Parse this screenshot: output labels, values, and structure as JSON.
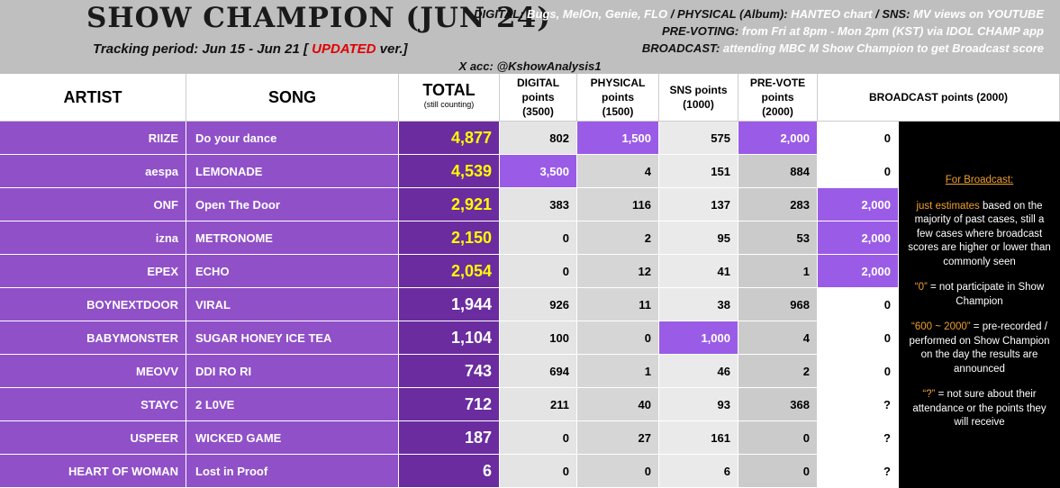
{
  "header": {
    "title": "SHOW CHAMPION (JUN 24)",
    "tracking": [
      "Tracking period: Jun 15 - Jun 21 [ ",
      "UPDATED",
      " ver.]"
    ],
    "info": [
      [
        "DIGITAL:",
        "Bugs, MelOn, Genie, FLO",
        "/ PHYSICAL (Album):",
        "HANTEO chart",
        "/ SNS:",
        "MV views on YOUTUBE"
      ],
      [
        "PRE-VOTING:",
        "from Fri at 8pm - Mon 2pm (KST) via IDOL CHAMP app"
      ],
      [
        "BROADCAST:",
        "attending MBC M Show Champion to get Broadcast score"
      ]
    ],
    "account": "X acc: @KshowAnalysis1"
  },
  "table": {
    "columns": [
      {
        "lines": [
          "ARTIST"
        ]
      },
      {
        "lines": [
          "SONG"
        ]
      },
      {
        "lines": [
          "TOTAL",
          "(still counting)"
        ]
      },
      {
        "lines": [
          "DIGITAL",
          "points",
          "(3500)"
        ]
      },
      {
        "lines": [
          "PHYSICAL",
          "points",
          "(1500)"
        ]
      },
      {
        "lines": [
          "SNS points",
          "(1000)"
        ]
      },
      {
        "lines": [
          "PRE-VOTE",
          "points",
          "(2000)"
        ]
      },
      {
        "lines": [
          "BROADCAST points (2000)"
        ]
      }
    ],
    "rows": [
      {
        "artist": "RIIZE",
        "song": "Do your dance",
        "total": "4,877",
        "digital": "802",
        "physical": "1,500",
        "sns": "575",
        "prevote": "2,000",
        "broadcast": "0",
        "total_color": "#ffff00"
      },
      {
        "artist": "aespa",
        "song": "LEMONADE",
        "total": "4,539",
        "digital": "3,500",
        "physical": "4",
        "sns": "151",
        "prevote": "884",
        "broadcast": "0",
        "total_color": "#ffff00"
      },
      {
        "artist": "ONF",
        "song": "Open The Door",
        "total": "2,921",
        "digital": "383",
        "physical": "116",
        "sns": "137",
        "prevote": "283",
        "broadcast": "2,000",
        "total_color": "#ffff00"
      },
      {
        "artist": "izna",
        "song": "METRONOME",
        "total": "2,150",
        "digital": "0",
        "physical": "2",
        "sns": "95",
        "prevote": "53",
        "broadcast": "2,000",
        "total_color": "#ffff00"
      },
      {
        "artist": "EPEX",
        "song": "ECHO",
        "total": "2,054",
        "digital": "0",
        "physical": "12",
        "sns": "41",
        "prevote": "1",
        "broadcast": "2,000",
        "total_color": "#ffff00"
      },
      {
        "artist": "BOYNEXTDOOR",
        "song": "VIRAL",
        "total": "1,944",
        "digital": "926",
        "physical": "11",
        "sns": "38",
        "prevote": "968",
        "broadcast": "0",
        "total_color": "#ffffff"
      },
      {
        "artist": "BABYMONSTER",
        "song": "SUGAR HONEY ICE TEA",
        "total": "1,104",
        "digital": "100",
        "physical": "0",
        "sns": "1,000",
        "prevote": "4",
        "broadcast": "0",
        "total_color": "#ffffff"
      },
      {
        "artist": "MEOVV",
        "song": "DDI RO RI",
        "total": "743",
        "digital": "694",
        "physical": "1",
        "sns": "46",
        "prevote": "2",
        "broadcast": "0",
        "total_color": "#ffffff"
      },
      {
        "artist": "STAYC",
        "song": "2 L0VE",
        "total": "712",
        "digital": "211",
        "physical": "40",
        "sns": "93",
        "prevote": "368",
        "broadcast": "?",
        "total_color": "#ffffff"
      },
      {
        "artist": "USPEER",
        "song": "WICKED GAME",
        "total": "187",
        "digital": "0",
        "physical": "27",
        "sns": "161",
        "prevote": "0",
        "broadcast": "?",
        "total_color": "#ffffff"
      },
      {
        "artist": "HEART OF WOMAN",
        "song": "Lost in Proof",
        "total": "6",
        "digital": "0",
        "physical": "0",
        "sns": "6",
        "prevote": "0",
        "broadcast": "?",
        "total_color": "#ffffff"
      }
    ]
  },
  "note": {
    "heading": "For Broadcast:",
    "paragraphs": [
      [
        "just estimates",
        " based on the majority of past cases, still a few cases where broadcast scores are higher or lower than commonly seen"
      ],
      [
        "“0”",
        " = not participate in Show Champion"
      ],
      [
        "“600 ~ 2000”",
        " = pre-recorded / performed on Show Champion on the day the results are announced"
      ],
      [
        "“?”",
        " = not sure about their attendance or the points they will receive"
      ]
    ]
  }
}
